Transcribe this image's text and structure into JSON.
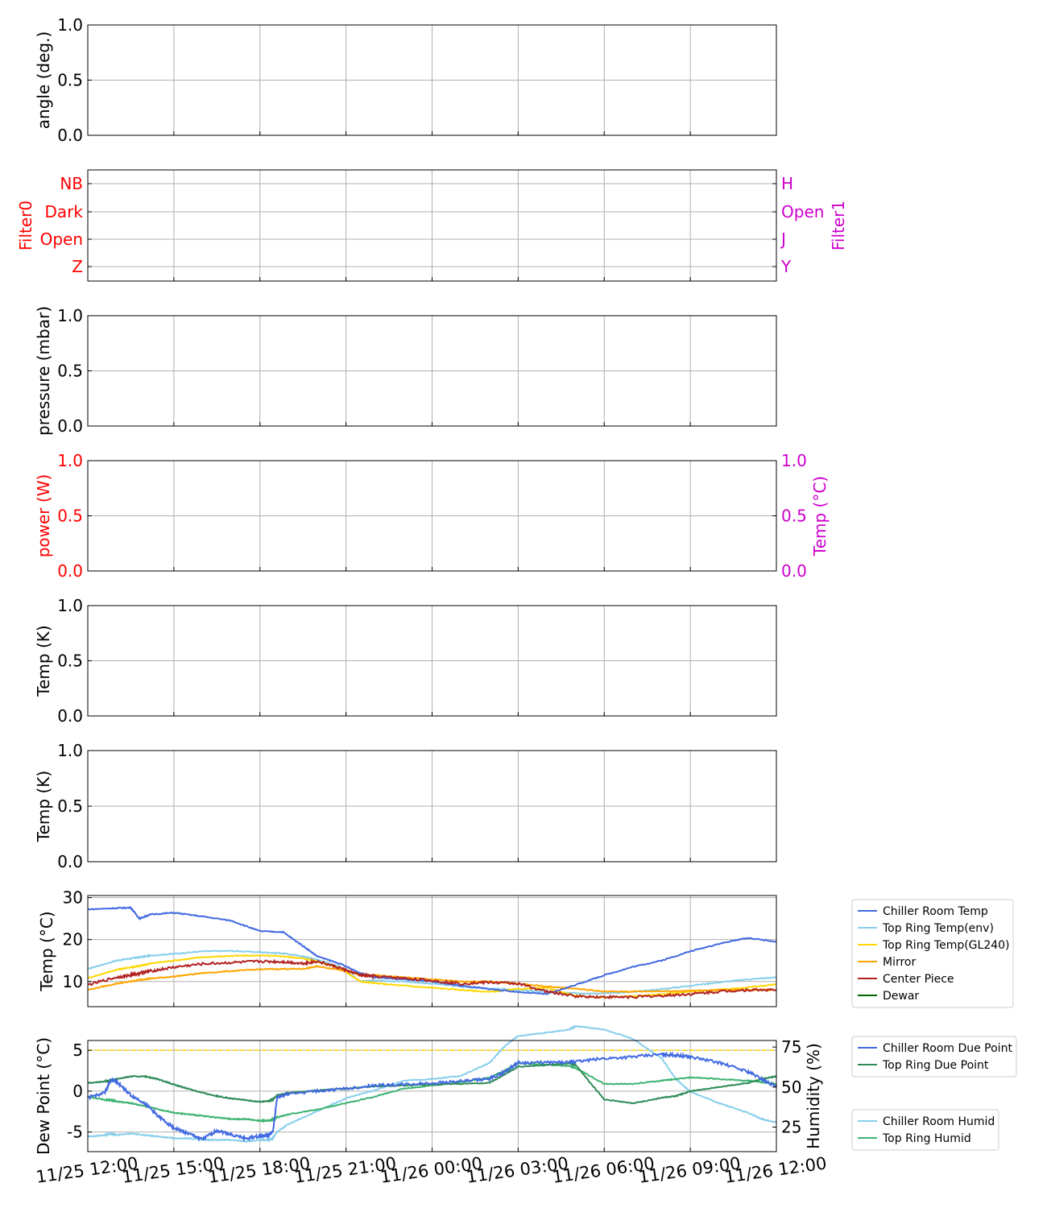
{
  "colors": {
    "chiller_room_temp": "#4169e1",
    "top_ring_temp_env": "#87ceeb",
    "top_ring_temp_gl240": "#ffd700",
    "mirror": "#ffa500",
    "center_piece": "#b22222",
    "dewar": "#006400",
    "top_ring_due_point": "#2e8b57",
    "top_ring_humid": "#3cb371",
    "threshold": "#ffd700",
    "filter0": "#ff0000",
    "filter1": "#cc00cc",
    "power": "#ff0000",
    "temp_c_right": "#cc00cc"
  },
  "x_axis": {
    "ticks": [
      "11/25 12:00",
      "11/25 15:00",
      "11/25 18:00",
      "11/25 21:00",
      "11/26 00:00",
      "11/26 03:00",
      "11/26 06:00",
      "11/26 09:00",
      "11/26 12:00"
    ]
  },
  "chart_data": [
    {
      "id": "angle",
      "type": "line",
      "ylabel": "angle (deg.)",
      "ylim": [
        0,
        1
      ],
      "yticks": [
        "0.0",
        "0.5",
        "1.0"
      ],
      "series": [],
      "grid": true
    },
    {
      "id": "filter",
      "type": "line",
      "ylabel": "Filter0",
      "ylabel_right": "Filter1",
      "categories_left": [
        "Z",
        "Open",
        "Dark",
        "NB"
      ],
      "categories_right": [
        "Y",
        "J",
        "Open",
        "H"
      ],
      "series": [],
      "grid": true
    },
    {
      "id": "pressure",
      "type": "line",
      "ylabel": "pressure (mbar)",
      "ylim": [
        0,
        1
      ],
      "yticks": [
        "0.0",
        "0.5",
        "1.0"
      ],
      "series": [],
      "grid": true
    },
    {
      "id": "power",
      "type": "line",
      "ylabel": "power (W)",
      "ylabel_right": "Temp (°C)",
      "ylim": [
        0,
        1
      ],
      "yticks": [
        "0.0",
        "0.5",
        "1.0"
      ],
      "yticks_right": [
        "0.0",
        "0.5",
        "1.0"
      ],
      "series": [],
      "grid": true
    },
    {
      "id": "temp_k_1",
      "type": "line",
      "ylabel": "Temp (K)",
      "ylim": [
        0,
        1
      ],
      "yticks": [
        "0.0",
        "0.5",
        "1.0"
      ],
      "series": [],
      "grid": true
    },
    {
      "id": "temp_k_2",
      "type": "line",
      "ylabel": "Temp (K)",
      "ylim": [
        0,
        1
      ],
      "yticks": [
        "0.0",
        "0.5",
        "1.0"
      ],
      "series": [],
      "grid": true
    },
    {
      "id": "temp_c",
      "type": "line",
      "ylabel": "Temp (°C)",
      "ylim": [
        4,
        30.5
      ],
      "yticks": [
        "10",
        "20",
        "30"
      ],
      "x_hours": [
        0,
        1,
        1.5,
        1.8,
        2.2,
        3,
        4,
        5,
        6,
        6.8,
        7.5,
        8,
        8.8,
        9.5,
        10,
        11,
        12,
        13,
        14,
        15,
        16,
        17,
        18,
        19,
        20,
        21,
        22,
        23,
        24
      ],
      "series": [
        {
          "name": "Chiller Room Temp",
          "values": [
            27.2,
            27.5,
            27.6,
            25.0,
            26.0,
            26.4,
            25.5,
            24.5,
            22.0,
            21.8,
            18.5,
            16.0,
            14.2,
            12.0,
            11.0,
            10.5,
            10.0,
            9.0,
            8.2,
            7.5,
            7.0,
            9.2,
            11.5,
            13.5,
            15.0,
            17.2,
            19.0,
            20.4,
            19.5
          ]
        },
        {
          "name": "Top Ring Temp(env)",
          "values": [
            13.0,
            15.0,
            15.5,
            15.8,
            16.2,
            16.6,
            17.2,
            17.3,
            17.0,
            16.7,
            16.0,
            15.2,
            13.5,
            10.0,
            10.3,
            10.0,
            9.5,
            8.8,
            8.3,
            8.0,
            7.5,
            7.2,
            7.2,
            7.5,
            8.2,
            9.0,
            9.8,
            10.5,
            11.0
          ]
        },
        {
          "name": "Top Ring Temp(GL240)",
          "values": [
            10.8,
            12.8,
            13.4,
            13.7,
            14.3,
            15.0,
            15.8,
            16.1,
            16.2,
            16.0,
            15.5,
            14.8,
            13.2,
            10.0,
            9.6,
            9.0,
            8.5,
            8.0,
            7.5,
            8.2,
            8.5,
            6.6,
            6.2,
            6.5,
            7.0,
            7.6,
            8.0,
            8.6,
            9.3
          ]
        },
        {
          "name": "Mirror",
          "values": [
            8.0,
            9.5,
            10.0,
            10.4,
            10.7,
            11.2,
            12.0,
            12.5,
            12.9,
            13.0,
            13.0,
            13.6,
            12.8,
            11.5,
            11.5,
            11.0,
            10.5,
            10.0,
            10.0,
            9.5,
            8.8,
            8.3,
            7.6,
            7.6,
            7.7,
            7.8,
            8.0,
            8.0,
            8.0
          ]
        },
        {
          "name": "Center Piece",
          "values": [
            9.2,
            11.0,
            11.5,
            12.0,
            12.5,
            13.4,
            14.2,
            14.5,
            14.8,
            14.7,
            14.3,
            14.8,
            13.2,
            11.5,
            11.2,
            10.8,
            10.2,
            9.5,
            9.8,
            9.5,
            7.6,
            6.5,
            6.3,
            6.3,
            6.6,
            7.0,
            7.6,
            8.0,
            8.0
          ]
        },
        {
          "name": "Dewar",
          "values": []
        }
      ],
      "legend": "right"
    },
    {
      "id": "dew",
      "type": "line",
      "ylabel": "Dew Point (°C)",
      "ylabel_right": "Humidity (%)",
      "ylim": [
        -7.4,
        6.2
      ],
      "yticks": [
        "-5",
        "0",
        "5"
      ],
      "yticks_right": [
        "25",
        "50",
        "75"
      ],
      "threshold": 5,
      "x_hours": [
        0,
        0.6,
        0.8,
        1,
        1.5,
        2,
        2.5,
        3,
        3.5,
        4,
        4.5,
        5,
        5.5,
        6,
        6.3,
        6.45,
        6.6,
        7,
        8,
        9,
        10,
        11,
        12,
        13,
        14,
        14.5,
        15,
        16,
        16.8,
        17,
        18,
        19,
        20,
        20.5,
        21,
        22,
        23,
        23.5,
        24
      ],
      "series": [
        {
          "name": "Chiller Room Due Point",
          "axis": "left",
          "values": [
            -0.8,
            -0.2,
            1.4,
            1.2,
            -0.5,
            -1.5,
            -3.2,
            -4.5,
            -5.2,
            -5.9,
            -4.8,
            -5.3,
            -5.8,
            -5.5,
            -5.4,
            -5.0,
            -0.8,
            -0.3,
            0.0,
            0.3,
            0.7,
            0.8,
            1.0,
            1.2,
            1.5,
            2.3,
            3.5,
            3.5,
            3.5,
            3.6,
            4.0,
            4.2,
            4.5,
            4.4,
            4.2,
            3.5,
            2.4,
            1.5,
            0.5
          ]
        },
        {
          "name": "Top Ring Due Point",
          "axis": "left",
          "values": [
            1.0,
            1.2,
            1.3,
            1.5,
            1.8,
            1.8,
            1.4,
            0.8,
            0.3,
            -0.2,
            -0.6,
            -0.9,
            -1.1,
            -1.3,
            -1.2,
            -1.0,
            -0.5,
            -0.2,
            0.1,
            0.3,
            0.6,
            0.7,
            0.8,
            0.9,
            1.0,
            2.0,
            3.0,
            3.2,
            3.4,
            3.2,
            -1.0,
            -1.5,
            -0.8,
            -0.6,
            0.0,
            0.5,
            1.0,
            1.5,
            1.8
          ]
        },
        {
          "name": "Chiller Room Humid",
          "axis": "right",
          "values": [
            19,
            20,
            21,
            20,
            21,
            20,
            19,
            18,
            18,
            17,
            17,
            17,
            16,
            17,
            17,
            18,
            22,
            27,
            35,
            43,
            48,
            54,
            55,
            57,
            65,
            75,
            82,
            84,
            86,
            88,
            86,
            80,
            68,
            55,
            47,
            40,
            34,
            30,
            28
          ]
        },
        {
          "name": "Top Ring Humid",
          "axis": "right",
          "values": [
            44,
            42,
            42,
            41,
            40,
            38,
            36,
            34,
            33,
            32,
            31,
            30,
            30,
            29,
            29,
            30,
            31,
            33,
            36,
            40,
            44,
            49,
            51,
            53,
            56,
            60,
            65,
            64,
            63,
            62,
            52,
            52,
            54,
            55,
            56,
            55,
            54,
            53,
            52
          ]
        }
      ],
      "legend": "right"
    }
  ]
}
